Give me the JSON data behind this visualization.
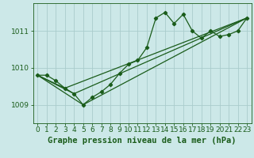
{
  "title": "Graphe pression niveau de la mer (hPa)",
  "background_color": "#cce8e8",
  "grid_color": "#aacccc",
  "line_color": "#1a5c1a",
  "marker_color": "#1a5c1a",
  "xlim": [
    -0.5,
    23.5
  ],
  "ylim": [
    1008.5,
    1011.75
  ],
  "yticks": [
    1009,
    1010,
    1011
  ],
  "xticks": [
    0,
    1,
    2,
    3,
    4,
    5,
    6,
    7,
    8,
    9,
    10,
    11,
    12,
    13,
    14,
    15,
    16,
    17,
    18,
    19,
    20,
    21,
    22,
    23
  ],
  "series1_x": [
    0,
    1,
    2,
    3,
    4,
    5,
    6,
    7,
    8,
    9,
    10,
    11,
    12,
    13,
    14,
    15,
    16,
    17,
    18,
    19,
    20,
    21,
    22,
    23
  ],
  "series1_y": [
    1009.8,
    1009.8,
    1009.65,
    1009.45,
    1009.3,
    1009.0,
    1009.2,
    1009.35,
    1009.55,
    1009.85,
    1010.1,
    1010.2,
    1010.55,
    1011.35,
    1011.5,
    1011.2,
    1011.45,
    1011.0,
    1010.8,
    1011.0,
    1010.85,
    1010.9,
    1011.0,
    1011.35
  ],
  "series2_x": [
    0,
    3,
    23
  ],
  "series2_y": [
    1009.8,
    1009.45,
    1011.35
  ],
  "series3_x": [
    0,
    5,
    23
  ],
  "series3_y": [
    1009.8,
    1009.0,
    1011.35
  ],
  "series4_x": [
    0,
    4,
    23
  ],
  "series4_y": [
    1009.8,
    1009.3,
    1011.35
  ],
  "title_fontsize": 7.5,
  "tick_fontsize": 6.5
}
